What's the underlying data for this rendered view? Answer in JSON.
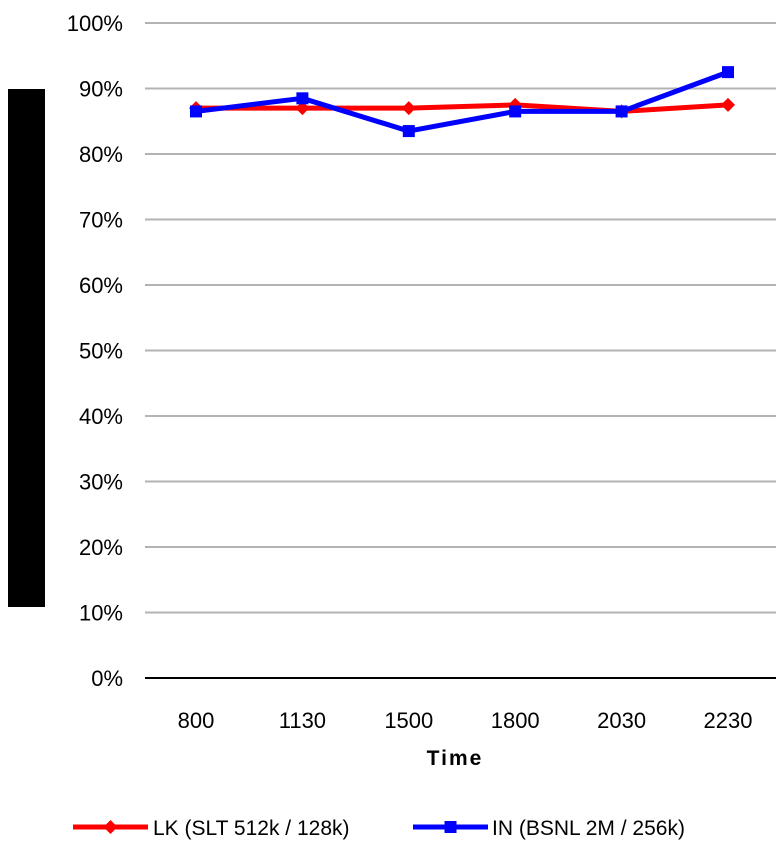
{
  "chart_data": {
    "type": "line",
    "title": "",
    "xlabel": "Time",
    "ylabel": "",
    "categories": [
      "800",
      "1130",
      "1500",
      "1800",
      "2030",
      "2230"
    ],
    "ylim": [
      0,
      100
    ],
    "yticks": [
      "0%",
      "10%",
      "20%",
      "30%",
      "40%",
      "50%",
      "60%",
      "70%",
      "80%",
      "90%",
      "100%"
    ],
    "grid": true,
    "legend_position": "bottom",
    "series": [
      {
        "name": "LK (SLT 512k / 128k)",
        "color": "#ff0000",
        "marker": "diamond",
        "values": [
          87,
          87,
          87,
          87.5,
          86.5,
          87.5
        ]
      },
      {
        "name": "IN (BSNL 2M / 256k)",
        "color": "#0000ff",
        "marker": "square",
        "values": [
          86.5,
          88.5,
          83.5,
          86.5,
          86.5,
          92.5
        ]
      }
    ]
  },
  "redaction_color": "#000000"
}
